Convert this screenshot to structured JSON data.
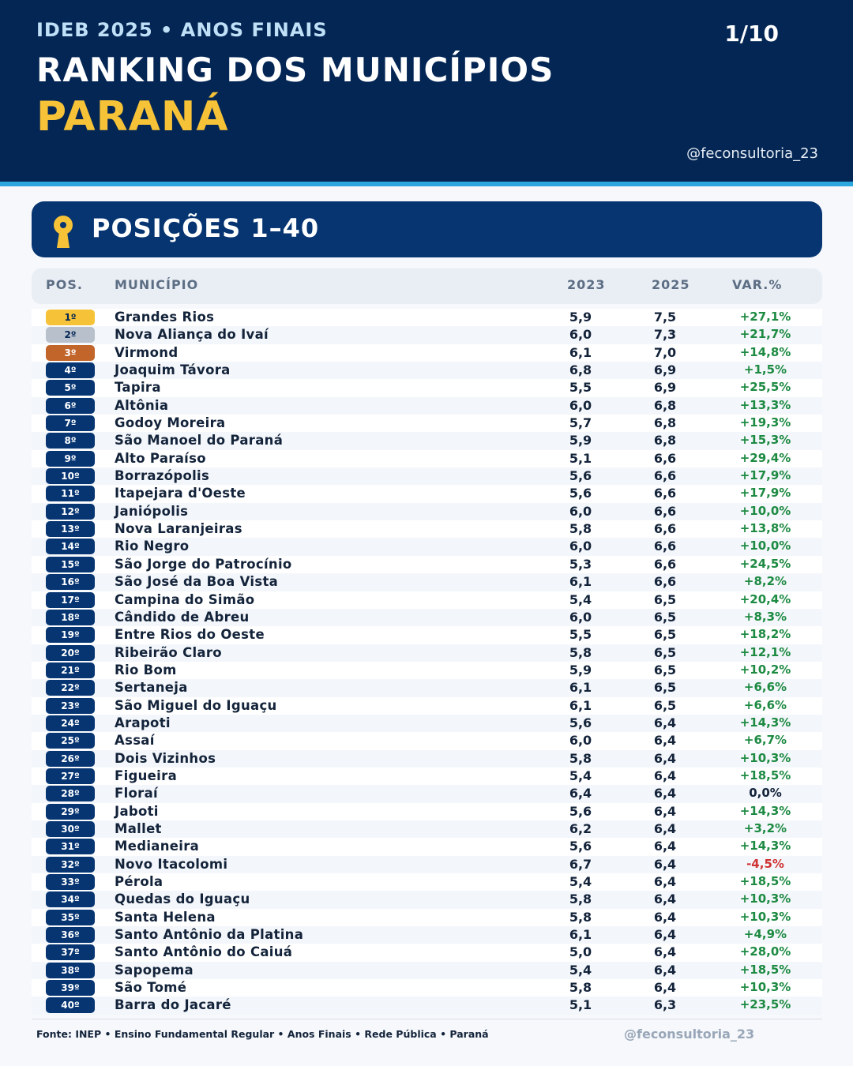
{
  "header": {
    "kicker": "IDEB 2025 • ANOS FINAIS",
    "page": "1/10",
    "title": "RANKING DOS MUNICÍPIOS",
    "state": "PARANÁ",
    "handle": "@feconsultoria_23"
  },
  "section": {
    "title": "POSIÇÕES 1–40",
    "icon": "medal-icon"
  },
  "columns": {
    "pos": "POS.",
    "municipio": "MUNICÍPIO",
    "y2023": "2023",
    "y2025": "2025",
    "var": "VAR.%"
  },
  "colors": {
    "navy": "#042654",
    "gold": "#f6c237",
    "silver": "#b8c0cc",
    "bronze": "#c2652b",
    "positive": "#1d8a42",
    "negative": "#d03333",
    "accent": "#2aa7df"
  },
  "rows": [
    {
      "pos": "1º",
      "municipio": "Grandes Rios",
      "y2023": "5,9",
      "y2025": "7,5",
      "var": "+27,1%"
    },
    {
      "pos": "2º",
      "municipio": "Nova Aliança do Ivaí",
      "y2023": "6,0",
      "y2025": "7,3",
      "var": "+21,7%"
    },
    {
      "pos": "3º",
      "municipio": "Virmond",
      "y2023": "6,1",
      "y2025": "7,0",
      "var": "+14,8%"
    },
    {
      "pos": "4º",
      "municipio": "Joaquim Távora",
      "y2023": "6,8",
      "y2025": "6,9",
      "var": "+1,5%"
    },
    {
      "pos": "5º",
      "municipio": "Tapira",
      "y2023": "5,5",
      "y2025": "6,9",
      "var": "+25,5%"
    },
    {
      "pos": "6º",
      "municipio": "Altônia",
      "y2023": "6,0",
      "y2025": "6,8",
      "var": "+13,3%"
    },
    {
      "pos": "7º",
      "municipio": "Godoy Moreira",
      "y2023": "5,7",
      "y2025": "6,8",
      "var": "+19,3%"
    },
    {
      "pos": "8º",
      "municipio": "São Manoel do Paraná",
      "y2023": "5,9",
      "y2025": "6,8",
      "var": "+15,3%"
    },
    {
      "pos": "9º",
      "municipio": "Alto Paraíso",
      "y2023": "5,1",
      "y2025": "6,6",
      "var": "+29,4%"
    },
    {
      "pos": "10º",
      "municipio": "Borrazópolis",
      "y2023": "5,6",
      "y2025": "6,6",
      "var": "+17,9%"
    },
    {
      "pos": "11º",
      "municipio": "Itapejara d'Oeste",
      "y2023": "5,6",
      "y2025": "6,6",
      "var": "+17,9%"
    },
    {
      "pos": "12º",
      "municipio": "Janiópolis",
      "y2023": "6,0",
      "y2025": "6,6",
      "var": "+10,0%"
    },
    {
      "pos": "13º",
      "municipio": "Nova Laranjeiras",
      "y2023": "5,8",
      "y2025": "6,6",
      "var": "+13,8%"
    },
    {
      "pos": "14º",
      "municipio": "Rio Negro",
      "y2023": "6,0",
      "y2025": "6,6",
      "var": "+10,0%"
    },
    {
      "pos": "15º",
      "municipio": "São Jorge do Patrocínio",
      "y2023": "5,3",
      "y2025": "6,6",
      "var": "+24,5%"
    },
    {
      "pos": "16º",
      "municipio": "São José da Boa Vista",
      "y2023": "6,1",
      "y2025": "6,6",
      "var": "+8,2%"
    },
    {
      "pos": "17º",
      "municipio": "Campina do Simão",
      "y2023": "5,4",
      "y2025": "6,5",
      "var": "+20,4%"
    },
    {
      "pos": "18º",
      "municipio": "Cândido de Abreu",
      "y2023": "6,0",
      "y2025": "6,5",
      "var": "+8,3%"
    },
    {
      "pos": "19º",
      "municipio": "Entre Rios do Oeste",
      "y2023": "5,5",
      "y2025": "6,5",
      "var": "+18,2%"
    },
    {
      "pos": "20º",
      "municipio": "Ribeirão Claro",
      "y2023": "5,8",
      "y2025": "6,5",
      "var": "+12,1%"
    },
    {
      "pos": "21º",
      "municipio": "Rio Bom",
      "y2023": "5,9",
      "y2025": "6,5",
      "var": "+10,2%"
    },
    {
      "pos": "22º",
      "municipio": "Sertaneja",
      "y2023": "6,1",
      "y2025": "6,5",
      "var": "+6,6%"
    },
    {
      "pos": "23º",
      "municipio": "São Miguel do Iguaçu",
      "y2023": "6,1",
      "y2025": "6,5",
      "var": "+6,6%"
    },
    {
      "pos": "24º",
      "municipio": "Arapoti",
      "y2023": "5,6",
      "y2025": "6,4",
      "var": "+14,3%"
    },
    {
      "pos": "25º",
      "municipio": "Assaí",
      "y2023": "6,0",
      "y2025": "6,4",
      "var": "+6,7%"
    },
    {
      "pos": "26º",
      "municipio": "Dois Vizinhos",
      "y2023": "5,8",
      "y2025": "6,4",
      "var": "+10,3%"
    },
    {
      "pos": "27º",
      "municipio": "Figueira",
      "y2023": "5,4",
      "y2025": "6,4",
      "var": "+18,5%"
    },
    {
      "pos": "28º",
      "municipio": "Floraí",
      "y2023": "6,4",
      "y2025": "6,4",
      "var": "0,0%"
    },
    {
      "pos": "29º",
      "municipio": "Jaboti",
      "y2023": "5,6",
      "y2025": "6,4",
      "var": "+14,3%"
    },
    {
      "pos": "30º",
      "municipio": "Mallet",
      "y2023": "6,2",
      "y2025": "6,4",
      "var": "+3,2%"
    },
    {
      "pos": "31º",
      "municipio": "Medianeira",
      "y2023": "5,6",
      "y2025": "6,4",
      "var": "+14,3%"
    },
    {
      "pos": "32º",
      "municipio": "Novo Itacolomi",
      "y2023": "6,7",
      "y2025": "6,4",
      "var": "-4,5%"
    },
    {
      "pos": "33º",
      "municipio": "Pérola",
      "y2023": "5,4",
      "y2025": "6,4",
      "var": "+18,5%"
    },
    {
      "pos": "34º",
      "municipio": "Quedas do Iguaçu",
      "y2023": "5,8",
      "y2025": "6,4",
      "var": "+10,3%"
    },
    {
      "pos": "35º",
      "municipio": "Santa Helena",
      "y2023": "5,8",
      "y2025": "6,4",
      "var": "+10,3%"
    },
    {
      "pos": "36º",
      "municipio": "Santo Antônio da Platina",
      "y2023": "6,1",
      "y2025": "6,4",
      "var": "+4,9%"
    },
    {
      "pos": "37º",
      "municipio": "Santo Antônio do Caiuá",
      "y2023": "5,0",
      "y2025": "6,4",
      "var": "+28,0%"
    },
    {
      "pos": "38º",
      "municipio": "Sapopema",
      "y2023": "5,4",
      "y2025": "6,4",
      "var": "+18,5%"
    },
    {
      "pos": "39º",
      "municipio": "São Tomé",
      "y2023": "5,8",
      "y2025": "6,4",
      "var": "+10,3%"
    },
    {
      "pos": "40º",
      "municipio": "Barra do Jacaré",
      "y2023": "5,1",
      "y2025": "6,3",
      "var": "+23,5%"
    }
  ],
  "footer": {
    "source": "Fonte: INEP • Ensino Fundamental Regular • Anos Finais • Rede Pública • Paraná",
    "handle": "@feconsultoria_23"
  }
}
